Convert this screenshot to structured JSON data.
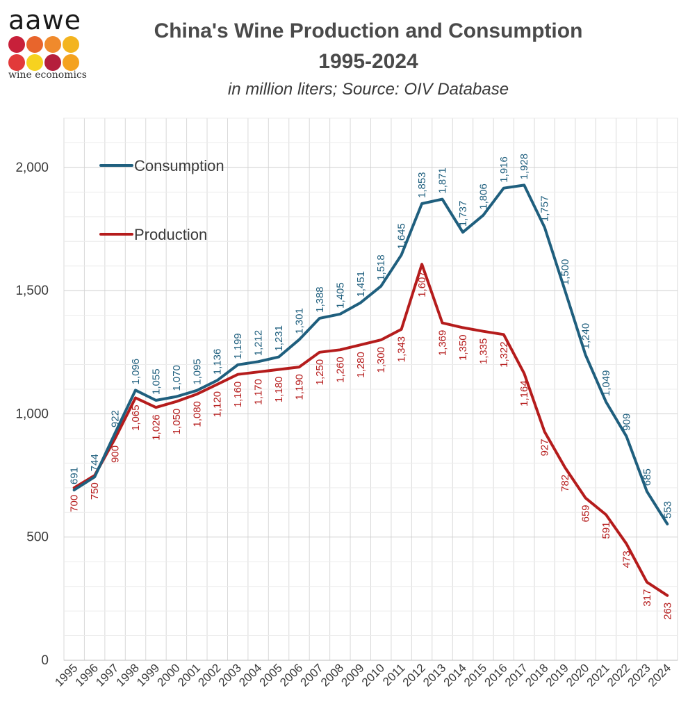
{
  "logo": {
    "wordmark": "aawe",
    "tagline": "wine economics",
    "dot_colors": [
      "#c8203a",
      "#e8652c",
      "#f08a2c",
      "#f3b41f",
      "#e23a3a",
      "#f6d21f",
      "#b51f3c",
      "#f4a21f"
    ]
  },
  "title_line1": "China's Wine Production and Consumption",
  "title_line2": "1995-2024",
  "subtitle": "in million liters; Source: OIV Database",
  "colors": {
    "consumption": "#1f5f7e",
    "production": "#b51c1c",
    "grid": "#d9d9d9"
  },
  "chart_data": {
    "type": "line",
    "categories": [
      "1995",
      "1996",
      "1997",
      "1998",
      "1999",
      "2000",
      "2001",
      "2002",
      "2003",
      "2004",
      "2005",
      "2006",
      "2007",
      "2008",
      "2009",
      "2010",
      "2011",
      "2012",
      "2013",
      "2014",
      "2015",
      "2016",
      "2017",
      "2018",
      "2019",
      "2020",
      "2021",
      "2022",
      "2023",
      "2024"
    ],
    "series": [
      {
        "name": "Consumption",
        "values": [
          691,
          744,
          922,
          1096,
          1055,
          1070,
          1095,
          1136,
          1199,
          1212,
          1231,
          1301,
          1388,
          1405,
          1451,
          1518,
          1645,
          1853,
          1871,
          1737,
          1806,
          1916,
          1928,
          1757,
          1500,
          1240,
          1049,
          909,
          685,
          553
        ],
        "labels": [
          "691",
          "744",
          "922",
          "1,096",
          "1,055",
          "1,070",
          "1,095",
          "1,136",
          "1,199",
          "1,212",
          "1,231",
          "1,301",
          "1,388",
          "1,405",
          "1,451",
          "1,518",
          "1,645",
          "1,853",
          "1,871",
          "1,737",
          "1,806",
          "1,916",
          "1,928",
          "1,757",
          "1,500",
          "1,240",
          "1,049",
          "909",
          "685",
          "553"
        ]
      },
      {
        "name": "Production",
        "values": [
          700,
          750,
          900,
          1065,
          1026,
          1050,
          1080,
          1120,
          1160,
          1170,
          1180,
          1190,
          1250,
          1260,
          1280,
          1300,
          1343,
          1607,
          1369,
          1350,
          1335,
          1322,
          1164,
          927,
          782,
          659,
          591,
          473,
          317,
          263
        ],
        "labels": [
          "700",
          "750",
          "900",
          "1,065",
          "1,026",
          "1,050",
          "1,080",
          "1,120",
          "1,160",
          "1,170",
          "1,180",
          "1,190",
          "1,250",
          "1,260",
          "1,280",
          "1,300",
          "1,343",
          "1,607",
          "1,369",
          "1,350",
          "1,335",
          "1,322",
          "1,164",
          "927",
          "782",
          "659",
          "591",
          "473",
          "317",
          "263"
        ]
      }
    ],
    "yticks": [
      0,
      500,
      1000,
      1500,
      2000
    ],
    "ytick_labels": [
      "0",
      "500",
      "1,000",
      "1,500",
      "2,000"
    ],
    "ylim": [
      0,
      2200
    ],
    "grid": true,
    "legend_position": "top-left"
  }
}
